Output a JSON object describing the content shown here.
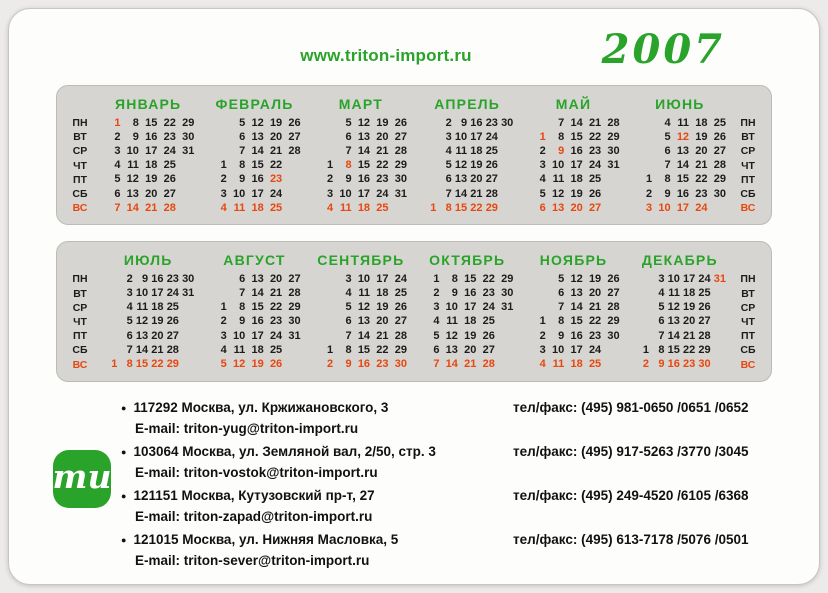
{
  "header": {
    "website": "www.triton-import.ru",
    "year": "2007"
  },
  "calendar": {
    "weekday_labels": [
      "ПН",
      "ВТ",
      "СР",
      "ЧТ",
      "ПТ",
      "СБ",
      "ВС"
    ],
    "colors": {
      "accent_green": "#2aa32a",
      "holiday_red": "#e8470f",
      "block_background": "#d6d5d1",
      "text_black": "#1c1c1c"
    },
    "rows": [
      {
        "months": [
          {
            "name": "ЯНВАРЬ",
            "first_day": 0,
            "days": 31,
            "red_days": [
              1
            ]
          },
          {
            "name": "ФЕВРАЛЬ",
            "first_day": 3,
            "days": 28,
            "red_days": [
              23
            ]
          },
          {
            "name": "МАРТ",
            "first_day": 3,
            "days": 31,
            "red_days": [
              8
            ]
          },
          {
            "name": "АПРЕЛЬ",
            "first_day": 6,
            "days": 30,
            "red_days": []
          },
          {
            "name": "МАЙ",
            "first_day": 1,
            "days": 31,
            "red_days": [
              1,
              9
            ]
          },
          {
            "name": "ИЮНЬ",
            "first_day": 4,
            "days": 30,
            "red_days": [
              12
            ]
          }
        ]
      },
      {
        "months": [
          {
            "name": "ИЮЛЬ",
            "first_day": 6,
            "days": 31,
            "red_days": []
          },
          {
            "name": "АВГУСТ",
            "first_day": 2,
            "days": 31,
            "red_days": []
          },
          {
            "name": "СЕНТЯБРЬ",
            "first_day": 5,
            "days": 30,
            "red_days": []
          },
          {
            "name": "ОКТЯБРЬ",
            "first_day": 0,
            "days": 31,
            "red_days": []
          },
          {
            "name": "НОЯБРЬ",
            "first_day": 3,
            "days": 30,
            "red_days": [
              4
            ]
          },
          {
            "name": "ДЕКАБРЬ",
            "first_day": 5,
            "days": 31,
            "red_days": [
              31
            ]
          }
        ]
      }
    ]
  },
  "logo": {
    "text": "ти"
  },
  "contacts": [
    {
      "address": "117292 Москва, ул. Кржижановского, 3",
      "email": "E-mail: triton-yug@triton-import.ru",
      "phone": "тел/факс: (495) 981-0650 /0651 /0652"
    },
    {
      "address": "103064 Москва, ул. Земляной вал, 2/50, стр. 3",
      "email": "E-mail: triton-vostok@triton-import.ru",
      "phone": "тел/факс: (495) 917-5263 /3770 /3045"
    },
    {
      "address": "121151 Москва, Кутузовский пр-т, 27",
      "email": "E-mail: triton-zapad@triton-import.ru",
      "phone": "тел/факс: (495) 249-4520 /6105 /6368"
    },
    {
      "address": "121015 Москва, ул. Нижняя Масловка, 5",
      "email": "E-mail: triton-sever@triton-import.ru",
      "phone": "тел/факс: (495) 613-7178 /5076 /0501"
    }
  ]
}
